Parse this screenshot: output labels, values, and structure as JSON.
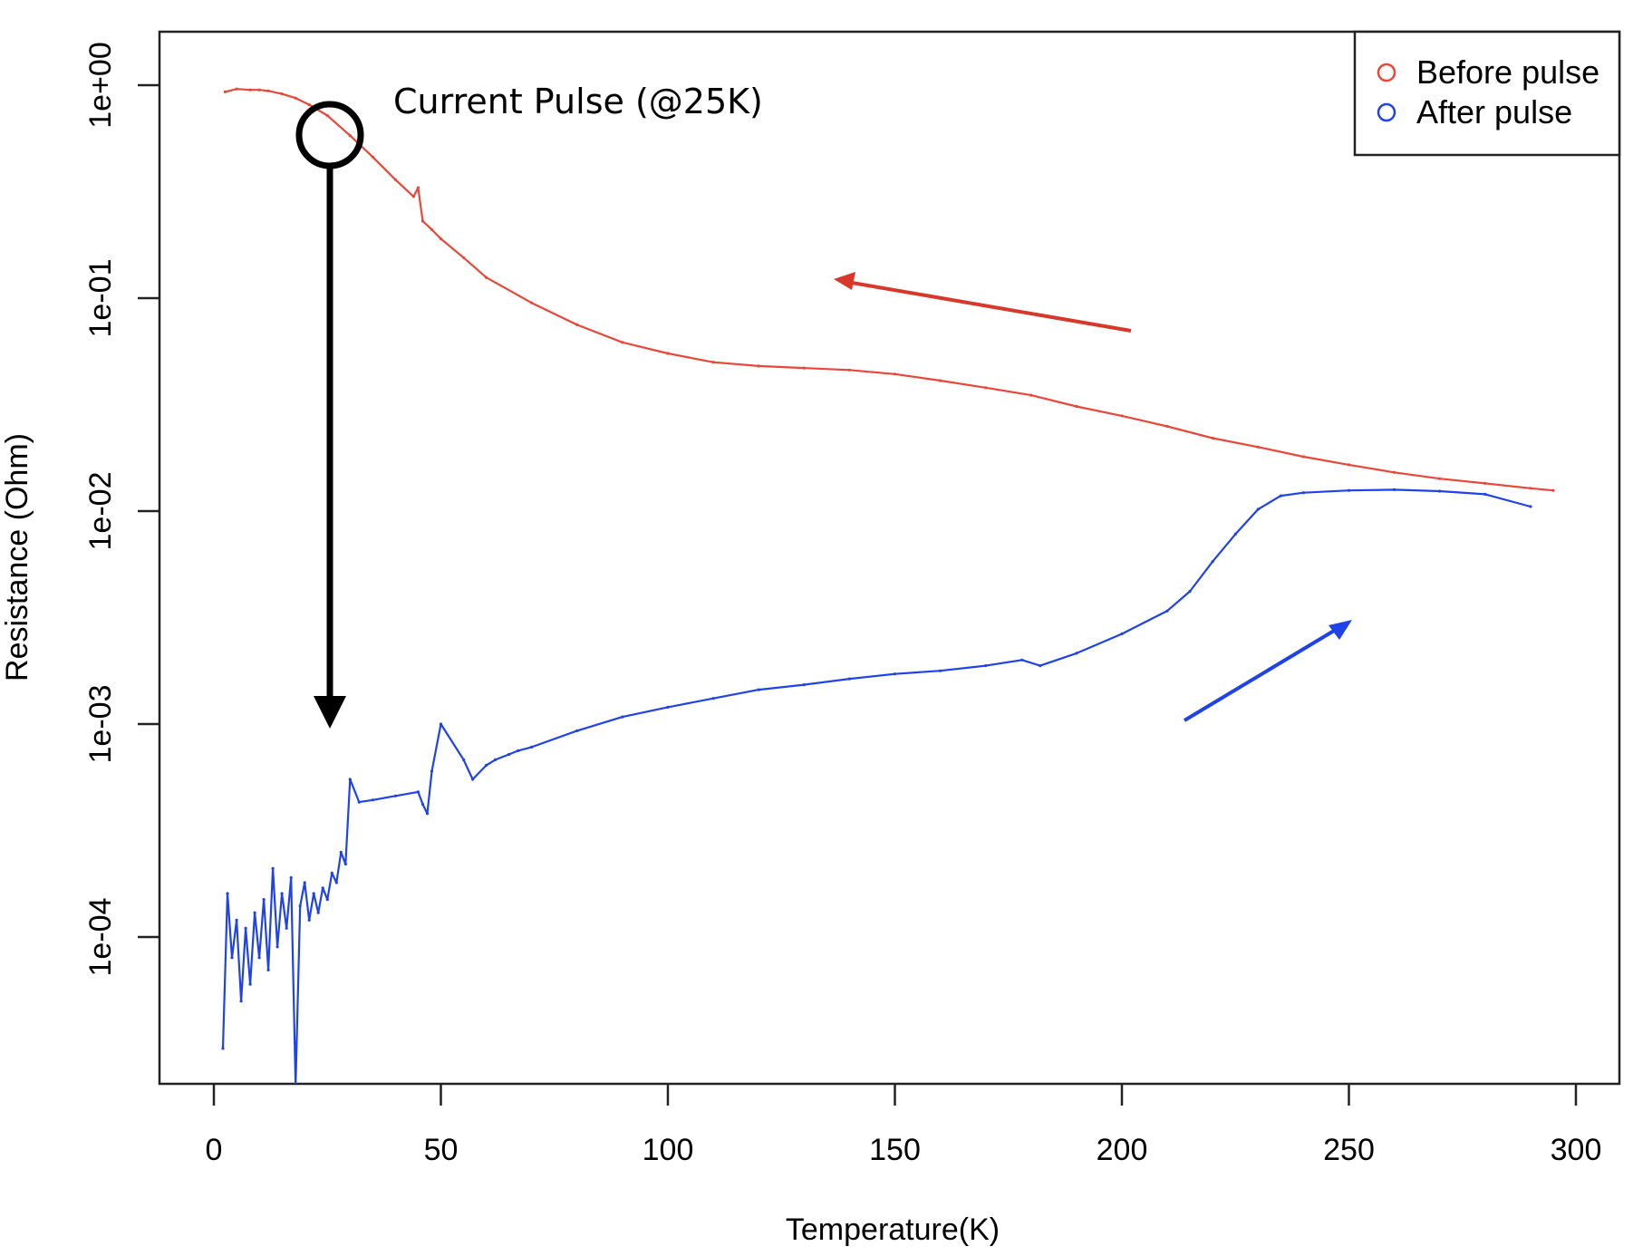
{
  "chart_data": {
    "type": "line",
    "xlabel": "Temperature(K)",
    "ylabel": "Resistance (Ohm)",
    "xlim": [
      -12,
      311
    ],
    "ylim_log10": [
      -4.7,
      0.3
    ],
    "y_scale": "log",
    "grid": false,
    "legend_position": "top-right",
    "x_ticks": [
      0,
      50,
      100,
      150,
      200,
      250,
      300
    ],
    "x_tick_labels": [
      "0",
      "50",
      "100",
      "150",
      "200",
      "250",
      "300"
    ],
    "y_ticks_log10": [
      0,
      -1,
      -2,
      -3,
      -4
    ],
    "y_tick_labels": [
      "1e+00",
      "1e-01",
      "1e-02",
      "1e-03",
      "1e-04"
    ],
    "series": [
      {
        "name": "Before pulse",
        "color": "#e8473a",
        "marker": "open-circle",
        "x": [
          2.5,
          5,
          8,
          10,
          12,
          15,
          18,
          21,
          25,
          30,
          35,
          40,
          44,
          45,
          46,
          48,
          50,
          55,
          60,
          70,
          80,
          90,
          100,
          110,
          120,
          130,
          140,
          150,
          160,
          170,
          180,
          190,
          200,
          210,
          220,
          230,
          240,
          250,
          260,
          270,
          280,
          290,
          295
        ],
        "y": [
          0.93,
          0.96,
          0.95,
          0.95,
          0.94,
          0.91,
          0.87,
          0.81,
          0.72,
          0.58,
          0.46,
          0.36,
          0.3,
          0.33,
          0.23,
          0.21,
          0.19,
          0.155,
          0.125,
          0.095,
          0.075,
          0.062,
          0.055,
          0.05,
          0.048,
          0.047,
          0.046,
          0.044,
          0.041,
          0.038,
          0.035,
          0.031,
          0.028,
          0.025,
          0.022,
          0.02,
          0.018,
          0.0165,
          0.0152,
          0.0142,
          0.0135,
          0.0128,
          0.0125
        ]
      },
      {
        "name": "After pulse",
        "color": "#1f43e8",
        "marker": "open-circle",
        "x": [
          2,
          3,
          4,
          5,
          6,
          7,
          8,
          9,
          10,
          11,
          12,
          13,
          14,
          15,
          16,
          17,
          18,
          19,
          20,
          21,
          22,
          23,
          24,
          25,
          26,
          27,
          28,
          29,
          30,
          32,
          35,
          40,
          45,
          46,
          47,
          48,
          50,
          55,
          57,
          60,
          62,
          65,
          67,
          70,
          80,
          90,
          100,
          110,
          120,
          130,
          140,
          150,
          160,
          170,
          178,
          182,
          190,
          200,
          210,
          215,
          220,
          225,
          230,
          235,
          240,
          250,
          260,
          270,
          280,
          290
        ],
        "y": [
          3e-05,
          0.00016,
          8e-05,
          0.00012,
          5e-05,
          0.00011,
          6e-05,
          0.00013,
          8e-05,
          0.00015,
          7e-05,
          0.00021,
          9e-05,
          0.00016,
          0.00011,
          0.00019,
          2e-05,
          0.00014,
          0.00018,
          0.00012,
          0.00016,
          0.00013,
          0.00017,
          0.00015,
          0.0002,
          0.00018,
          0.00025,
          0.00022,
          0.00055,
          0.00043,
          0.00044,
          0.00046,
          0.00048,
          0.00042,
          0.00038,
          0.0006,
          0.001,
          0.00068,
          0.00055,
          0.00064,
          0.00068,
          0.00072,
          0.00075,
          0.00078,
          0.00093,
          0.00108,
          0.0012,
          0.00132,
          0.00145,
          0.00153,
          0.00163,
          0.00172,
          0.00178,
          0.00188,
          0.002,
          0.00188,
          0.00215,
          0.00265,
          0.0034,
          0.0042,
          0.0058,
          0.0078,
          0.0102,
          0.0118,
          0.0122,
          0.0125,
          0.0126,
          0.0124,
          0.012,
          0.0105
        ]
      }
    ],
    "annotations": [
      {
        "text": "Current Pulse (@25K)"
      }
    ]
  },
  "legend": {
    "items": [
      {
        "label": "Before pulse",
        "color": "#e8473a"
      },
      {
        "label": "After pulse",
        "color": "#1f43e8"
      }
    ]
  }
}
